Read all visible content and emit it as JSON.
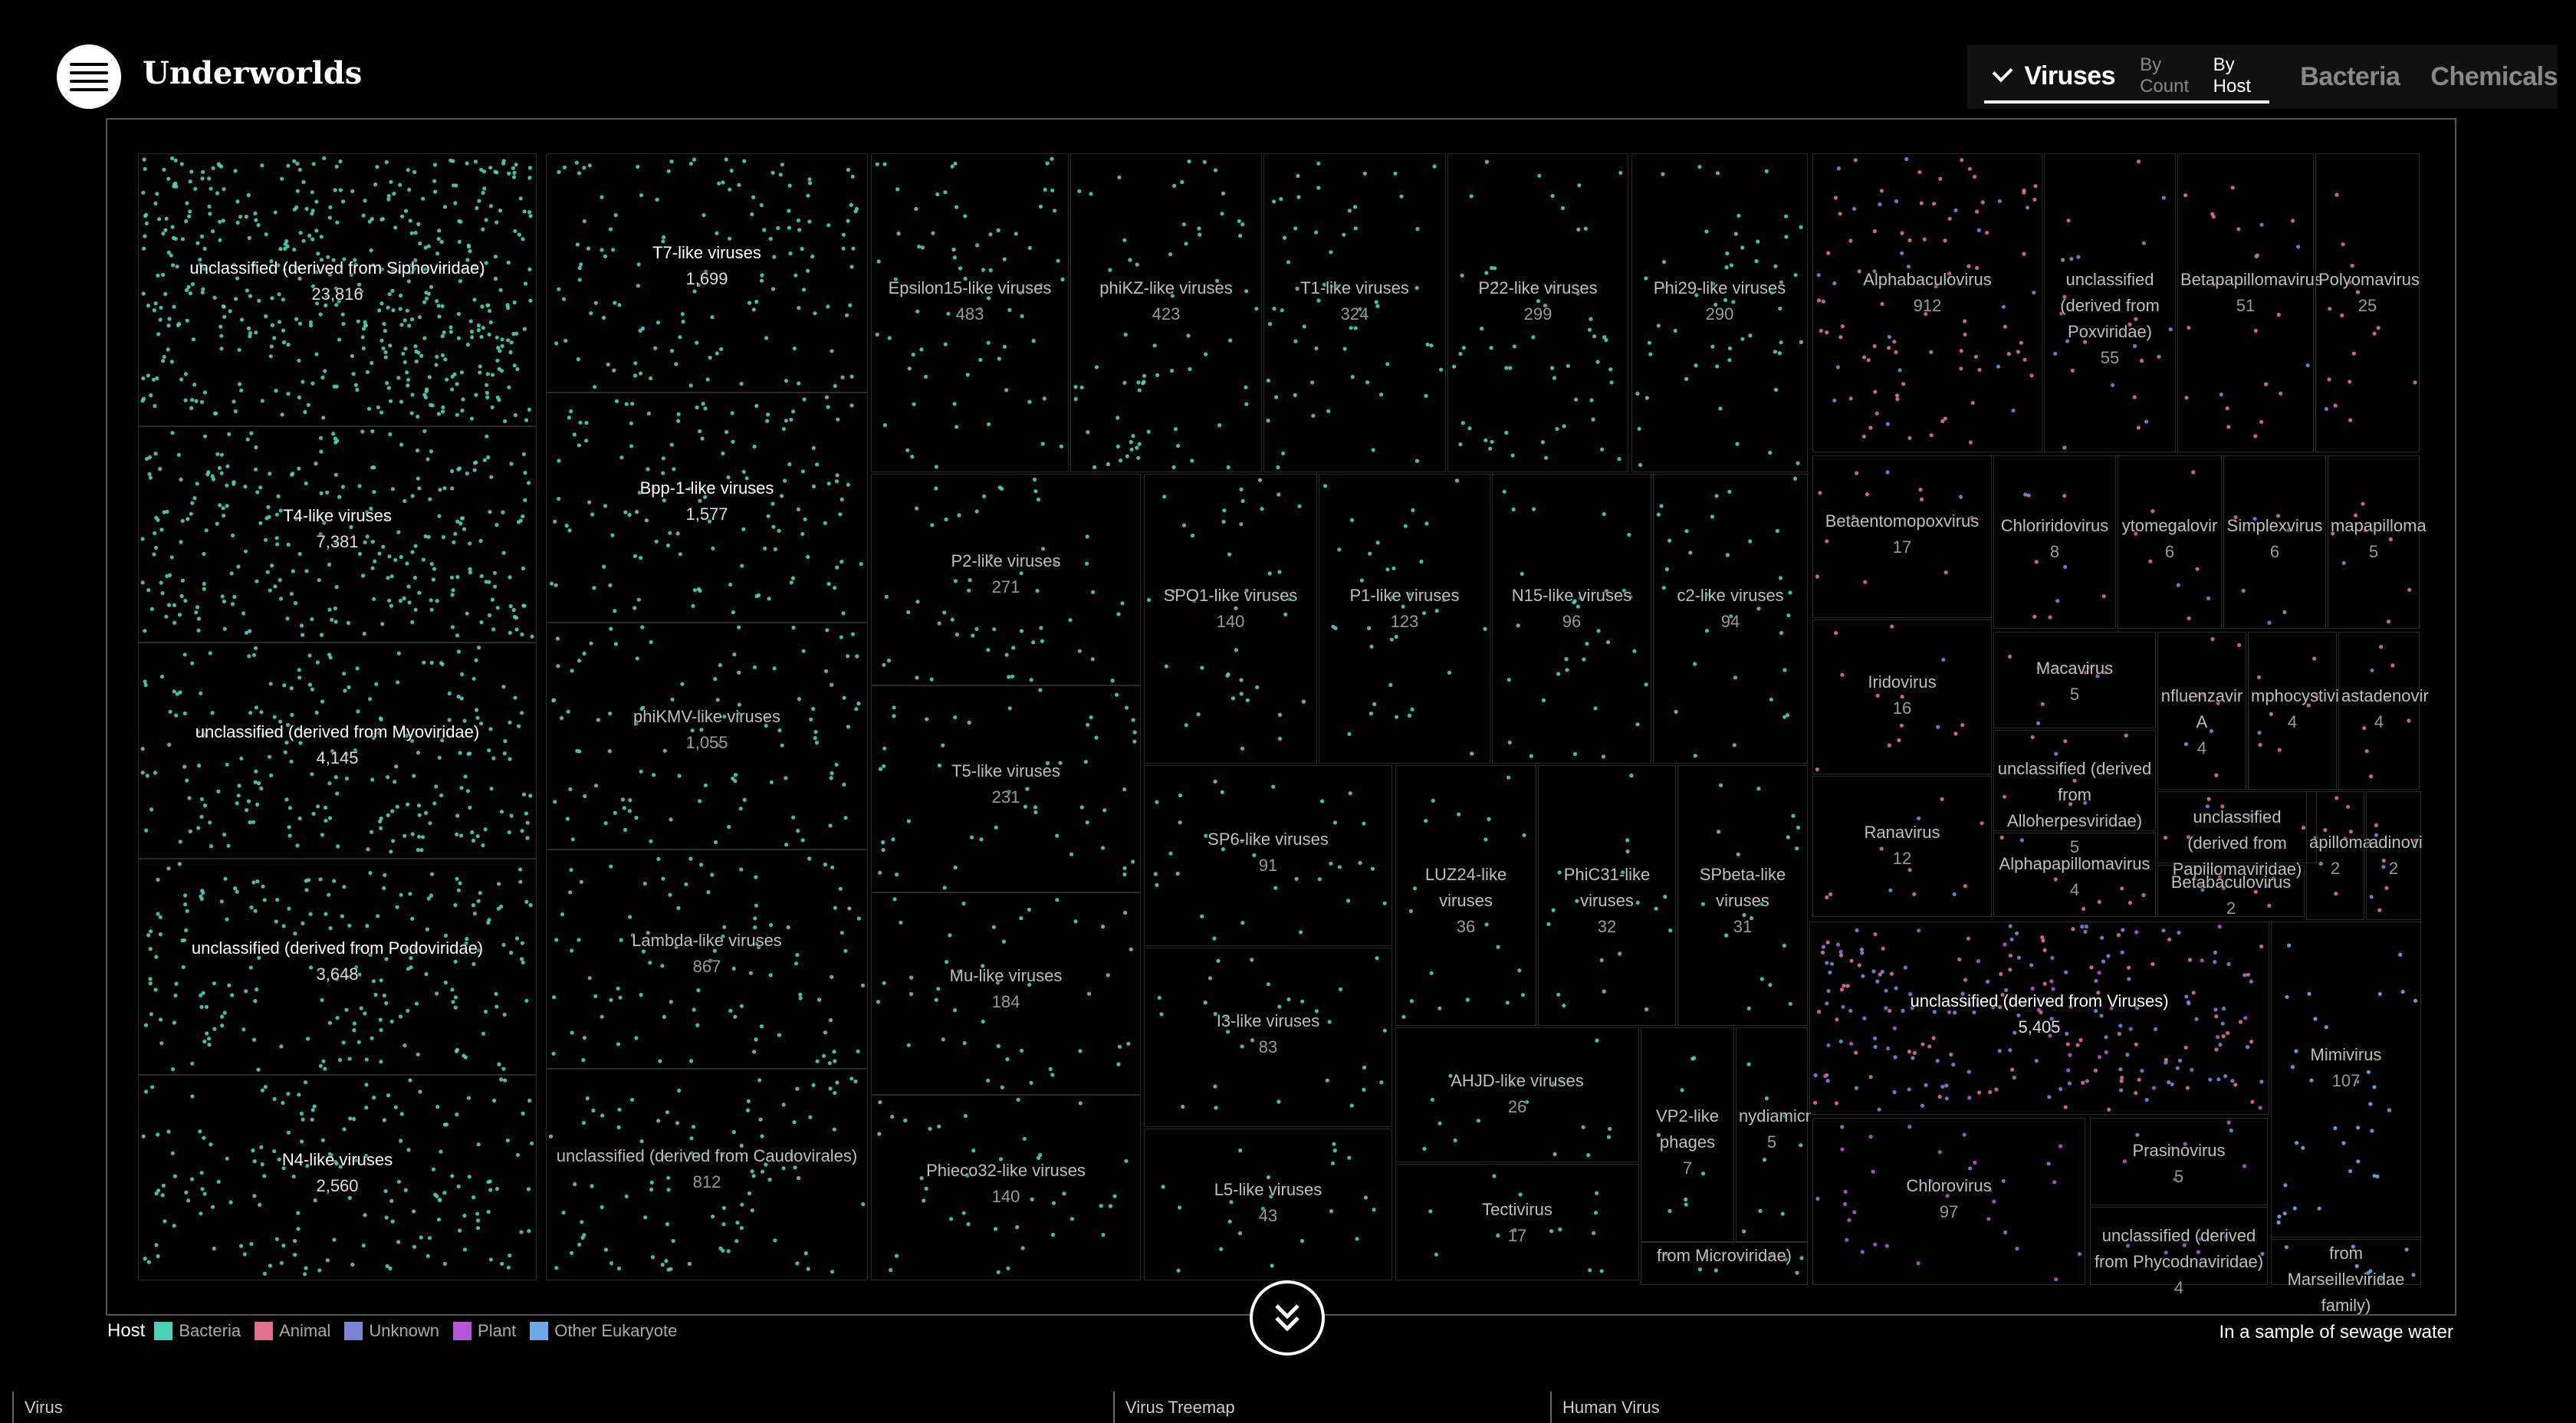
{
  "app": {
    "title": "Underworlds"
  },
  "nav": {
    "current": "Viruses",
    "sort_by_count": "By Count",
    "sort_by_host": "By Host",
    "other": [
      "Bacteria",
      "Chemicals"
    ]
  },
  "legend": {
    "title": "Host",
    "items": [
      {
        "label": "Bacteria",
        "color": "#4fd1b5"
      },
      {
        "label": "Animal",
        "color": "#e0708e"
      },
      {
        "label": "Unknown",
        "color": "#7b86d6"
      },
      {
        "label": "Plant",
        "color": "#b457d6"
      },
      {
        "label": "Other Eukaryote",
        "color": "#6fa8e8"
      }
    ]
  },
  "caption": "In a sample of sewage water",
  "footer": [
    "Virus",
    "Virus Treemap",
    "Human Virus"
  ],
  "icons": {
    "menu": "hamburger-icon",
    "dropdown": "chevron-down-icon",
    "scroll": "double-chevron-down-icon"
  },
  "treemap": [
    {
      "name": "unclassified (derived from Siphoviridae)",
      "count": "23,816",
      "host": "Bacteria"
    },
    {
      "name": "T4-like viruses",
      "count": "7,381",
      "host": "Bacteria"
    },
    {
      "name": "unclassified (derived from Myoviridae)",
      "count": "4,145",
      "host": "Bacteria"
    },
    {
      "name": "unclassified (derived from Podoviridae)",
      "count": "3,648",
      "host": "Bacteria"
    },
    {
      "name": "N4-like viruses",
      "count": "2,560",
      "host": "Bacteria"
    },
    {
      "name": "T7-like viruses",
      "count": "1,699",
      "host": "Bacteria"
    },
    {
      "name": "Bpp-1-like viruses",
      "count": "1,577",
      "host": "Bacteria"
    },
    {
      "name": "phiKMV-like viruses",
      "count": "1,055",
      "host": "Bacteria"
    },
    {
      "name": "Lambda-like viruses",
      "count": "867",
      "host": "Bacteria"
    },
    {
      "name": "unclassified (derived from Caudovirales)",
      "count": "812",
      "host": "Bacteria"
    },
    {
      "name": "Epsilon15-like viruses",
      "count": "483",
      "host": "Bacteria"
    },
    {
      "name": "phiKZ-like viruses",
      "count": "423",
      "host": "Bacteria"
    },
    {
      "name": "T1-like viruses",
      "count": "324",
      "host": "Bacteria"
    },
    {
      "name": "P22-like viruses",
      "count": "299",
      "host": "Bacteria"
    },
    {
      "name": "Phi29-like viruses",
      "count": "290",
      "host": "Bacteria"
    },
    {
      "name": "P2-like viruses",
      "count": "271",
      "host": "Bacteria"
    },
    {
      "name": "T5-like viruses",
      "count": "231",
      "host": "Bacteria"
    },
    {
      "name": "Mu-like viruses",
      "count": "184",
      "host": "Bacteria"
    },
    {
      "name": "Phieco32-like viruses",
      "count": "140",
      "host": "Bacteria"
    },
    {
      "name": "SPO1-like viruses",
      "count": "140",
      "host": "Bacteria"
    },
    {
      "name": "P1-like viruses",
      "count": "123",
      "host": "Bacteria"
    },
    {
      "name": "N15-like viruses",
      "count": "96",
      "host": "Bacteria"
    },
    {
      "name": "c2-like viruses",
      "count": "94",
      "host": "Bacteria"
    },
    {
      "name": "SP6-like viruses",
      "count": "91",
      "host": "Bacteria"
    },
    {
      "name": "I3-like viruses",
      "count": "83",
      "host": "Bacteria"
    },
    {
      "name": "L5-like viruses",
      "count": "43",
      "host": "Bacteria"
    },
    {
      "name": "LUZ24-like viruses",
      "count": "36",
      "host": "Bacteria"
    },
    {
      "name": "PhiC31-like viruses",
      "count": "32",
      "host": "Bacteria"
    },
    {
      "name": "SPbeta-like viruses",
      "count": "31",
      "host": "Bacteria"
    },
    {
      "name": "AHJD-like viruses",
      "count": "26",
      "host": "Bacteria"
    },
    {
      "name": "VP2-like phages",
      "count": "7",
      "host": "Bacteria"
    },
    {
      "name": "nydiamicr",
      "count": "5",
      "host": "Bacteria"
    },
    {
      "name": "Tectivirus",
      "count": "17",
      "host": "Bacteria"
    },
    {
      "name": "from Microviridae)",
      "count": "",
      "host": "Bacteria"
    },
    {
      "name": "Alphabaculovirus",
      "count": "912",
      "host": "Animal"
    },
    {
      "name": "unclassified (derived from Poxviridae)",
      "count": "55",
      "host": "Animal"
    },
    {
      "name": "Betapapillomavirus",
      "count": "51",
      "host": "Animal"
    },
    {
      "name": "Polyomavirus",
      "count": "25",
      "host": "Animal"
    },
    {
      "name": "Betaentomopoxvirus",
      "count": "17",
      "host": "Animal"
    },
    {
      "name": "Chloriridovirus",
      "count": "8",
      "host": "Animal"
    },
    {
      "name": "ytomegalovir",
      "count": "6",
      "host": "Animal"
    },
    {
      "name": "Simplexvirus",
      "count": "6",
      "host": "Animal"
    },
    {
      "name": "mapapilloma",
      "count": "5",
      "host": "Animal"
    },
    {
      "name": "Iridovirus",
      "count": "16",
      "host": "Animal"
    },
    {
      "name": "Macavirus",
      "count": "5",
      "host": "Animal"
    },
    {
      "name": "nfluenzavir A",
      "count": "4",
      "host": "Animal"
    },
    {
      "name": "mphocystivi",
      "count": "4",
      "host": "Animal"
    },
    {
      "name": "astadenovir",
      "count": "4",
      "host": "Animal"
    },
    {
      "name": "unclassified (derived from Alloherpesviridae)",
      "count": "5",
      "host": "Animal"
    },
    {
      "name": "Ranavirus",
      "count": "12",
      "host": "Animal"
    },
    {
      "name": "unclassified (derived from Papillomaviridae)",
      "count": "",
      "host": "Animal"
    },
    {
      "name": "apilloma",
      "count": "2",
      "host": "Animal"
    },
    {
      "name": "adinovi",
      "count": "2",
      "host": "Animal"
    },
    {
      "name": "Alphapapillomavirus",
      "count": "4",
      "host": "Animal"
    },
    {
      "name": "Betabaculovirus",
      "count": "2",
      "host": "Animal"
    },
    {
      "name": "unclassified (derived from Viruses)",
      "count": "5,405",
      "host": "Unknown"
    },
    {
      "name": "Mimivirus",
      "count": "107",
      "host": "Other Eukaryote"
    },
    {
      "name": "Chlorovirus",
      "count": "97",
      "host": "Plant"
    },
    {
      "name": "Prasinovirus",
      "count": "5",
      "host": "Plant"
    },
    {
      "name": "unclassified (derived from Phycodnaviridae)",
      "count": "4",
      "host": "Plant"
    },
    {
      "name": "from Marseilleviridae family)",
      "count": "",
      "host": "Other Eukaryote"
    }
  ]
}
